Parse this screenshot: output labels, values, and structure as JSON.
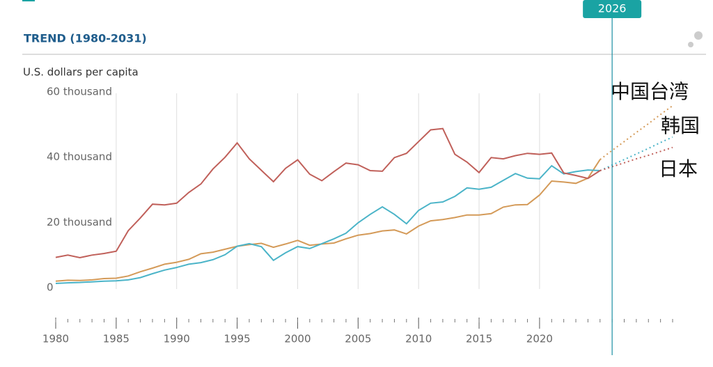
{
  "chart_data": {
    "type": "line",
    "title": "TREND (1980-2031)",
    "y_label": "U.S. dollars per capita",
    "marker": 2026,
    "forecast_start": 2025,
    "x": [
      1980,
      1981,
      1982,
      1983,
      1984,
      1985,
      1986,
      1987,
      1988,
      1989,
      1990,
      1991,
      1992,
      1993,
      1994,
      1995,
      1996,
      1997,
      1998,
      1999,
      2000,
      2001,
      2002,
      2003,
      2004,
      2005,
      2006,
      2007,
      2008,
      2009,
      2010,
      2011,
      2012,
      2013,
      2014,
      2015,
      2016,
      2017,
      2018,
      2019,
      2020,
      2021,
      2022,
      2023,
      2024,
      2025,
      2026,
      2027,
      2028,
      2029,
      2030,
      2031
    ],
    "xlim": [
      1980,
      2031
    ],
    "xticks": [
      1980,
      1985,
      1990,
      1995,
      2000,
      2005,
      2010,
      2015,
      2020
    ],
    "ylim": [
      0,
      60000
    ],
    "yticks": [
      0,
      {
        "value": 20000,
        "label": "20 thousand"
      },
      {
        "value": 40000,
        "label": "40 thousand"
      },
      {
        "value": 60000,
        "label": "60 thousand"
      }
    ],
    "grid": true,
    "series": [
      {
        "name": "中国台湾",
        "color": "#d49a58",
        "values": [
          2400,
          2700,
          2600,
          2800,
          3200,
          3300,
          4000,
          5300,
          6400,
          7600,
          8200,
          9100,
          10800,
          11300,
          12200,
          13100,
          13600,
          14000,
          12800,
          13800,
          14900,
          13400,
          13800,
          14100,
          15400,
          16500,
          17000,
          17800,
          18100,
          16900,
          19300,
          20900,
          21300,
          21900,
          22700,
          22700,
          23100,
          25100,
          25800,
          25900,
          28800,
          33100,
          32800,
          32400,
          34000,
          39700,
          42500,
          45200,
          48000,
          50700,
          53500,
          56200
        ]
      },
      {
        "name": "韩国",
        "color": "#4bb4c8",
        "values": [
          1700,
          1900,
          2000,
          2200,
          2400,
          2500,
          2800,
          3500,
          4700,
          5800,
          6600,
          7600,
          8100,
          9000,
          10500,
          13100,
          13900,
          13000,
          8800,
          11100,
          13000,
          12400,
          13900,
          15400,
          17100,
          20300,
          22900,
          25200,
          22900,
          20000,
          24100,
          26300,
          26700,
          28400,
          31000,
          30600,
          31200,
          33300,
          35400,
          34000,
          33800,
          37800,
          35300,
          36000,
          36500,
          36300,
          38000,
          39700,
          41400,
          43100,
          44900,
          46600
        ]
      },
      {
        "name": "日本",
        "color": "#c0605a",
        "values": [
          9700,
          10400,
          9600,
          10400,
          10900,
          11600,
          17900,
          21800,
          26000,
          25800,
          26300,
          29600,
          32200,
          36800,
          40400,
          44800,
          39900,
          36400,
          32900,
          37000,
          39600,
          35200,
          33200,
          36000,
          38600,
          38100,
          36300,
          36100,
          40300,
          41600,
          45200,
          48800,
          49200,
          41300,
          38900,
          35700,
          40300,
          39900,
          40900,
          41600,
          41300,
          41700,
          35600,
          34800,
          33900,
          36300,
          37500,
          38700,
          39900,
          41000,
          42200,
          43400
        ]
      }
    ]
  }
}
